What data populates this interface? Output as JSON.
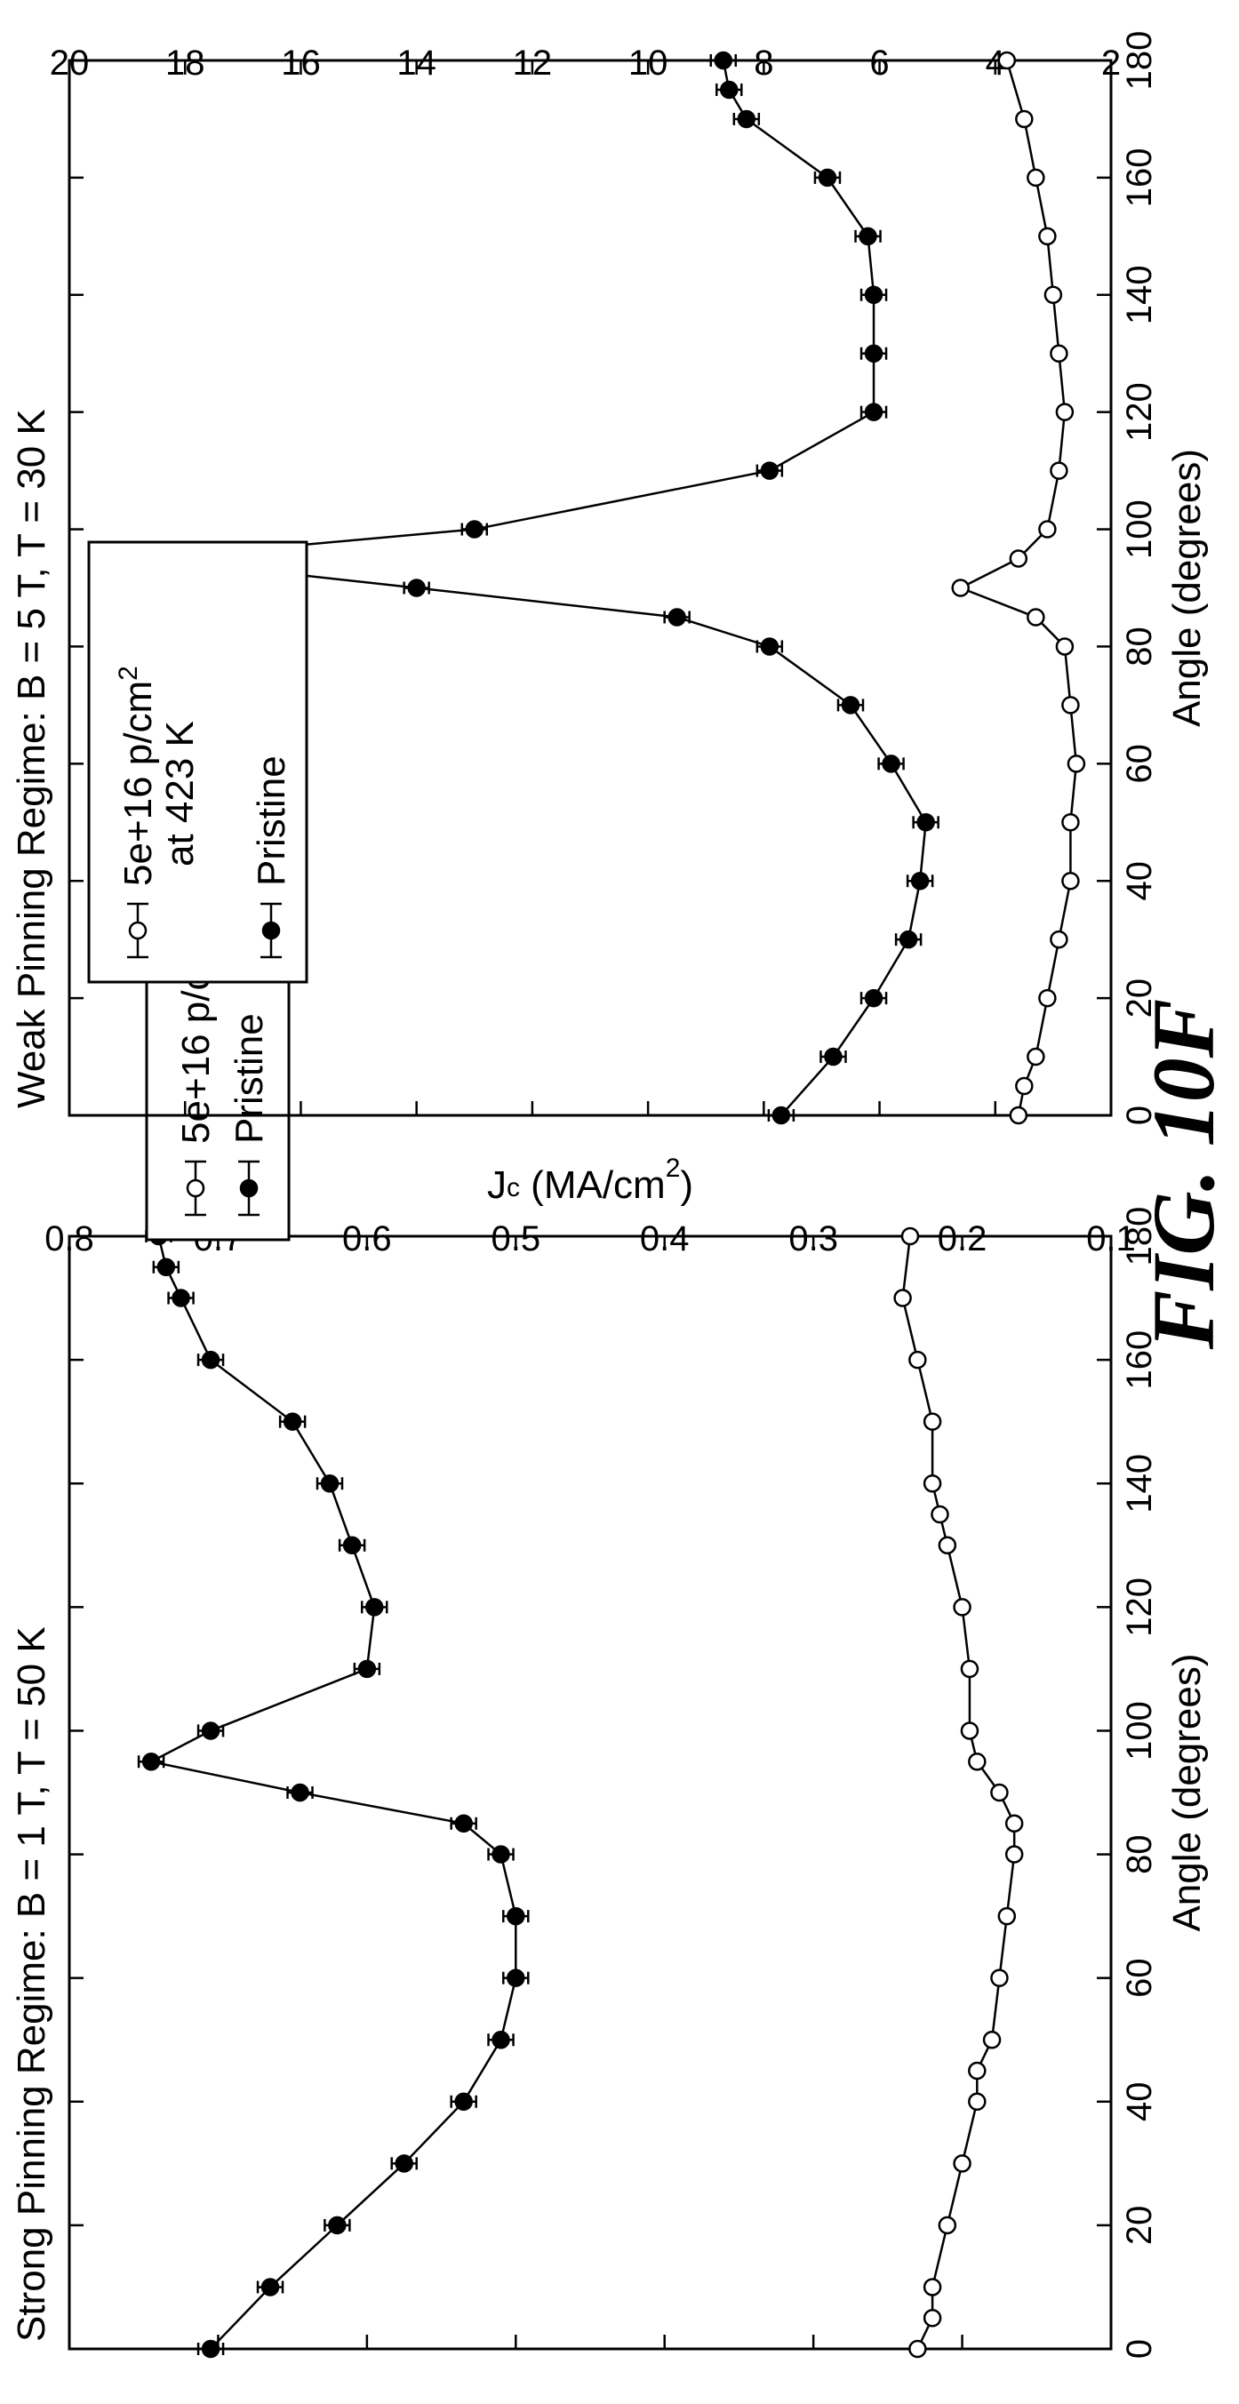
{
  "figure_label": "FIG. 10F",
  "chart_data": [
    {
      "type": "line",
      "title": "Strong Pinning Regime: B = 1 T, T = 50 K",
      "xlabel": "Angle (degrees)",
      "ylabel": "J_c (MA/cm²)",
      "ylabel_main": "J",
      "ylabel_sub": "c",
      "ylabel_rest": " (MA/cm",
      "ylabel_sup": "2",
      "ylabel_end": ")",
      "xlim": [
        0,
        180
      ],
      "ylim": [
        0.1,
        0.8
      ],
      "xticks": [
        0,
        20,
        40,
        60,
        80,
        100,
        120,
        140,
        160,
        180
      ],
      "yticks": [
        0.1,
        0.2,
        0.3,
        0.4,
        0.5,
        0.6,
        0.7,
        0.8
      ],
      "ytick_labels": [
        "0.1",
        "0.2",
        "0.3",
        "0.4",
        "0.5",
        "0.6",
        "0.7",
        "0.8"
      ],
      "grid": false,
      "legend_position": "upper-right",
      "legend": {
        "entry1_line1_a": "5e+16 p/cm",
        "entry1_line1_sup": "2",
        "entry1_line1_b": " at 423 K",
        "entry1_line2": "",
        "entry2": "Pristine"
      },
      "series": [
        {
          "name": "5e+16 p/cm2 at 423 K",
          "marker": "open-circle",
          "x": [
            0,
            5,
            10,
            20,
            30,
            40,
            45,
            50,
            60,
            70,
            80,
            85,
            90,
            95,
            100,
            110,
            120,
            130,
            135,
            140,
            150,
            160,
            170,
            180
          ],
          "y": [
            0.23,
            0.22,
            0.22,
            0.21,
            0.2,
            0.19,
            0.19,
            0.18,
            0.175,
            0.17,
            0.165,
            0.165,
            0.175,
            0.19,
            0.195,
            0.195,
            0.2,
            0.21,
            0.215,
            0.22,
            0.22,
            0.23,
            0.24,
            0.235
          ]
        },
        {
          "name": "Pristine",
          "marker": "filled-circle-errorbar",
          "x": [
            0,
            10,
            20,
            30,
            40,
            50,
            60,
            70,
            80,
            85,
            90,
            95,
            100,
            110,
            120,
            130,
            140,
            150,
            160,
            170,
            175,
            180
          ],
          "y": [
            0.705,
            0.665,
            0.62,
            0.575,
            0.535,
            0.51,
            0.5,
            0.5,
            0.51,
            0.535,
            0.645,
            0.745,
            0.705,
            0.6,
            0.595,
            0.61,
            0.625,
            0.65,
            0.705,
            0.725,
            0.735,
            0.74
          ]
        }
      ]
    },
    {
      "type": "line",
      "title": "Weak Pinning Regime: B = 5 T, T = 30 K",
      "xlabel": "Angle (degrees)",
      "ylabel": "",
      "xlim": [
        0,
        180
      ],
      "ylim": [
        2,
        20
      ],
      "xticks": [
        0,
        20,
        40,
        60,
        80,
        100,
        120,
        140,
        160,
        180
      ],
      "yticks": [
        2,
        4,
        6,
        8,
        10,
        12,
        14,
        16,
        18,
        20
      ],
      "ytick_labels": [
        "2",
        "4",
        "6",
        "8",
        "10",
        "12",
        "14",
        "16",
        "18",
        "20"
      ],
      "grid": false,
      "legend_position": "upper-left",
      "legend": {
        "entry1_line1_a": "5e+16 p/cm",
        "entry1_line1_sup": "2",
        "entry1_line1_b": "",
        "entry1_line2": "at 423 K",
        "entry2": "Pristine"
      },
      "series": [
        {
          "name": "5e+16 p/cm2 at 423 K",
          "marker": "open-circle",
          "x": [
            0,
            5,
            10,
            20,
            30,
            40,
            50,
            60,
            70,
            80,
            85,
            90,
            95,
            100,
            110,
            120,
            130,
            140,
            150,
            160,
            170,
            180
          ],
          "y": [
            3.6,
            3.5,
            3.3,
            3.1,
            2.9,
            2.7,
            2.7,
            2.6,
            2.7,
            2.8,
            3.3,
            4.6,
            3.6,
            3.1,
            2.9,
            2.8,
            2.9,
            3.0,
            3.1,
            3.3,
            3.5,
            3.8
          ]
        },
        {
          "name": "Pristine",
          "marker": "filled-circle-errorbar",
          "x": [
            0,
            10,
            20,
            30,
            40,
            50,
            60,
            70,
            80,
            85,
            90,
            95,
            100,
            110,
            120,
            130,
            140,
            150,
            160,
            170,
            175,
            180
          ],
          "y": [
            7.7,
            6.8,
            6.1,
            5.5,
            5.3,
            5.2,
            5.8,
            6.5,
            7.9,
            9.5,
            14.0,
            18.6,
            13.0,
            7.9,
            6.1,
            6.1,
            6.1,
            6.2,
            6.9,
            8.3,
            8.6,
            8.7
          ]
        }
      ]
    }
  ]
}
